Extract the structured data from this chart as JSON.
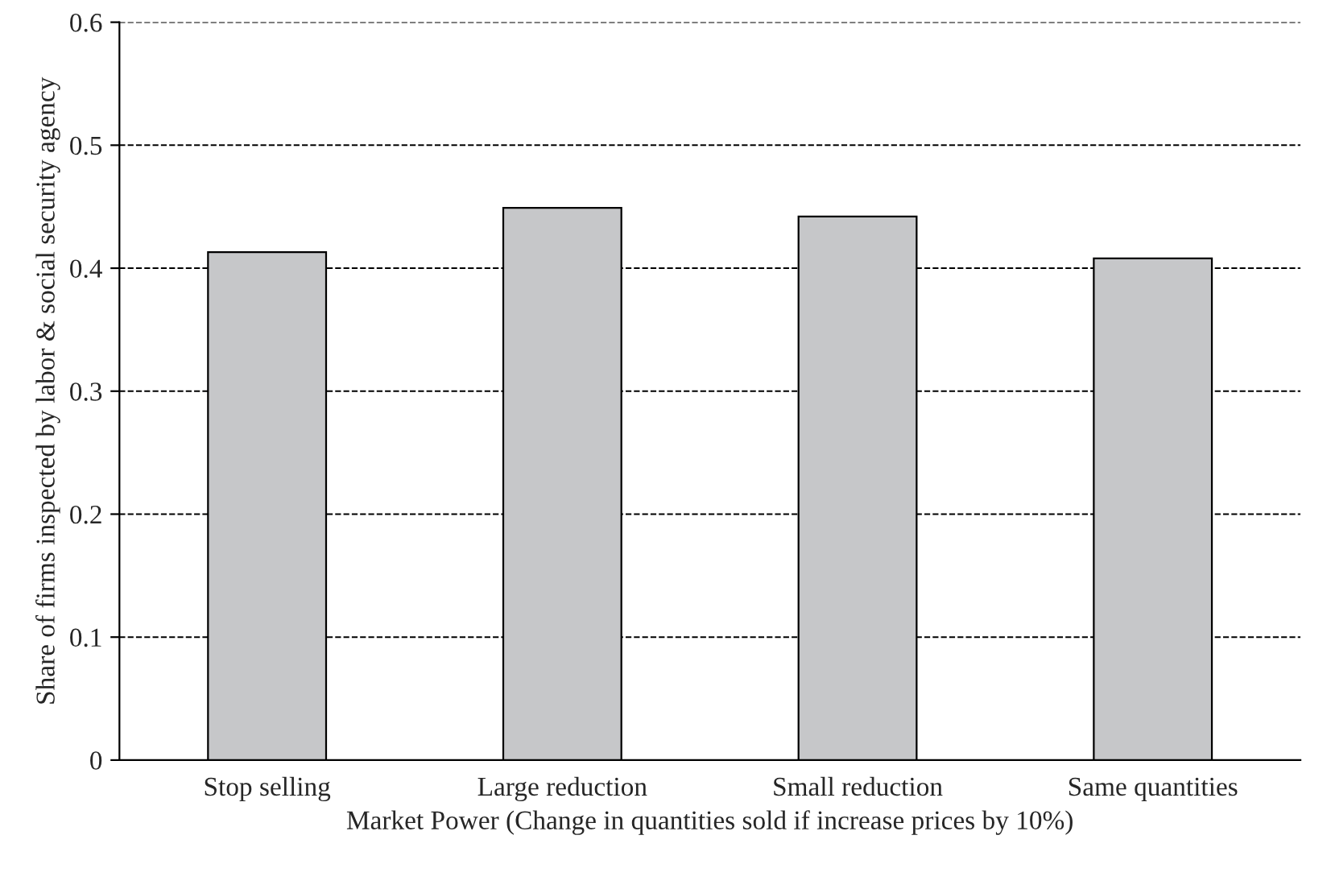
{
  "chart_data": {
    "type": "bar",
    "xlabel": "Market Power (Change in quantities sold if increase prices by 10%)",
    "ylabel": "Share of firms inspected by labor & social security agency",
    "categories": [
      "Stop selling",
      "Large reduction",
      "Small reduction",
      "Same quantities"
    ],
    "values": [
      0.413,
      0.449,
      0.442,
      0.408
    ],
    "color": "#c6c7c9",
    "ylim": [
      0,
      0.6
    ],
    "yticks": [
      0,
      0.1,
      0.2,
      0.3,
      0.4,
      0.5,
      0.6
    ],
    "grid": "y"
  }
}
